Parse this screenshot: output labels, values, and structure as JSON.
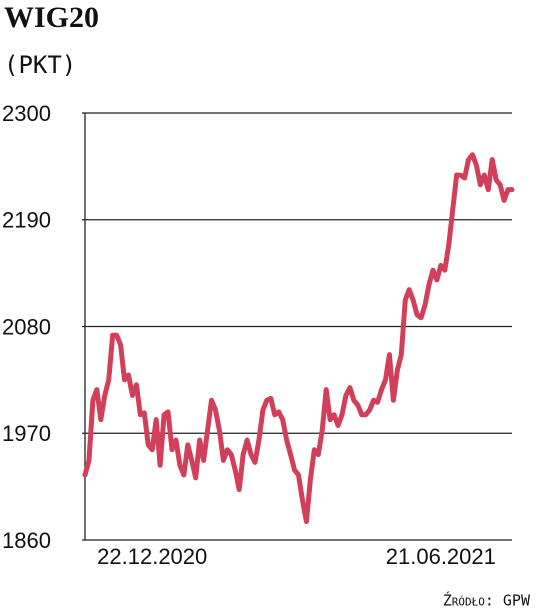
{
  "chart_data": {
    "type": "line",
    "title": "WIG20",
    "subtitle": "(PKT)",
    "source": "Źródło: GPW",
    "categories": [
      null,
      null,
      null,
      null,
      null,
      null,
      null,
      null,
      null,
      null,
      null,
      null,
      null,
      null,
      null,
      null,
      null,
      "22.12.2020",
      null,
      null,
      null,
      null,
      null,
      null,
      null,
      null,
      null,
      null,
      null,
      null,
      null,
      null,
      null,
      null,
      null,
      null,
      null,
      null,
      null,
      null,
      null,
      null,
      null,
      null,
      null,
      null,
      null,
      null,
      null,
      null,
      null,
      null,
      null,
      null,
      null,
      null,
      null,
      null,
      null,
      null,
      null,
      null,
      null,
      null,
      null,
      null,
      null,
      null,
      null,
      null,
      null,
      null,
      null,
      null,
      null,
      null,
      null,
      null,
      null,
      null,
      null,
      null,
      null,
      null,
      null,
      null,
      null,
      null,
      null,
      null,
      "21.06.2021",
      null,
      null,
      null,
      null,
      null,
      null,
      null,
      null,
      null,
      null,
      null,
      null,
      null,
      null,
      null,
      null,
      null,
      null
    ],
    "values": [
      1927,
      1942,
      2004,
      2015,
      1984,
      2009,
      2025,
      2071,
      2071,
      2061,
      2025,
      2030,
      2009,
      2020,
      1989,
      1991,
      1958,
      1953,
      1984,
      1937,
      1989,
      1992,
      1953,
      1963,
      1937,
      1927,
      1958,
      1942,
      1924,
      1963,
      1942,
      1973,
      2004,
      1994,
      1973,
      1942,
      1953,
      1948,
      1932,
      1912,
      1948,
      1963,
      1948,
      1940,
      1963,
      1994,
      2004,
      2006,
      1989,
      1992,
      1984,
      1963,
      1948,
      1932,
      1927,
      1901,
      1879,
      1922,
      1953,
      1948,
      1973,
      2015,
      1984,
      1989,
      1978,
      1989,
      2009,
      2017,
      2004,
      1999,
      1989,
      1989,
      1994,
      2004,
      2002,
      2015,
      2025,
      2051,
      2004,
      2035,
      2051,
      2107,
      2118,
      2107,
      2092,
      2089,
      2102,
      2123,
      2138,
      2128,
      2143,
      2138,
      2164,
      2200,
      2236,
      2236,
      2233,
      2252,
      2257,
      2246,
      2226,
      2236,
      2221,
      2252,
      2231,
      2226,
      2210,
      2221,
      2221
    ],
    "color": "#d23f5b",
    "ylim": [
      1860,
      2300
    ],
    "yticks": [
      1860,
      1970,
      2080,
      2190,
      2300
    ],
    "grid": true
  }
}
